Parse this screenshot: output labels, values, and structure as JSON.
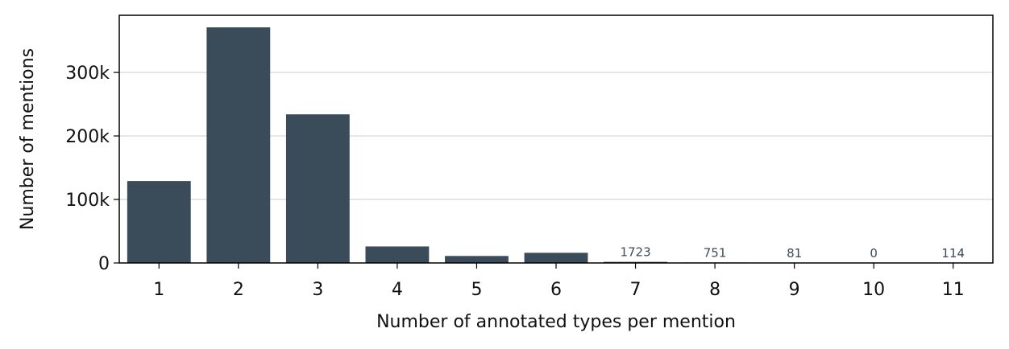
{
  "chart_data": {
    "type": "bar",
    "xlabel": "Number of annotated types per mention",
    "ylabel": "Number of mentions",
    "categories": [
      "1",
      "2",
      "3",
      "4",
      "5",
      "6",
      "7",
      "8",
      "9",
      "10",
      "11"
    ],
    "values": [
      129000,
      371000,
      234000,
      26000,
      11000,
      16000,
      1723,
      751,
      81,
      0,
      114
    ],
    "data_labels": [
      "",
      "",
      "",
      "",
      "",
      "",
      "1723",
      "751",
      "81",
      "0",
      "114"
    ],
    "ylim": [
      0,
      390000
    ],
    "yticks": [
      0,
      100000,
      200000,
      300000
    ],
    "ytick_labels": [
      "0",
      "100k",
      "200k",
      "300k"
    ],
    "grid": "horizontal",
    "bar_color": "#3a4b5a",
    "label_color": "#3a4b5a",
    "grid_color": "#d3d3d3"
  }
}
